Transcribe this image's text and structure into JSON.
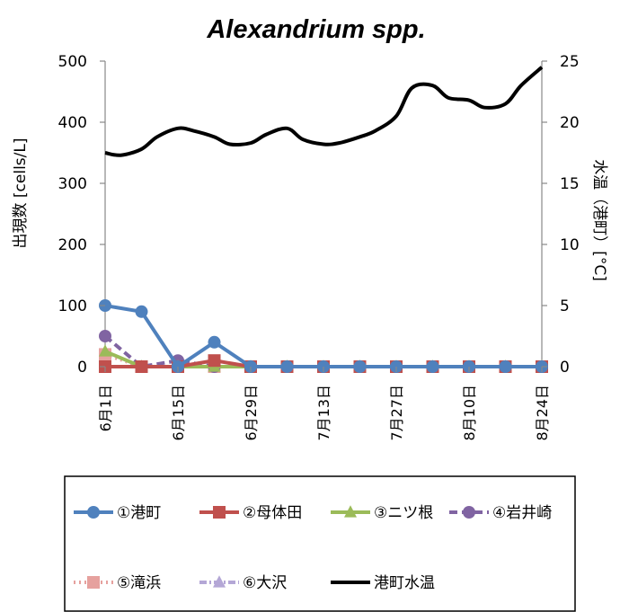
{
  "chart_data": {
    "type": "line",
    "title": "Alexandrium spp.",
    "ylabel": "出現数 [cells/L]",
    "y2label": "水温（港町）[°C]",
    "ylim": [
      0,
      500
    ],
    "y2lim": [
      0,
      25
    ],
    "yticks": [
      "0",
      "100",
      "200",
      "300",
      "400",
      "500"
    ],
    "y2ticks": [
      "0",
      "5",
      "10",
      "15",
      "20",
      "25"
    ],
    "x_date_labels": [
      "6月1日",
      "6月15日",
      "6月29日",
      "7月13日",
      "7月27日",
      "8月10日",
      "8月24日"
    ],
    "x_date_days": [
      0,
      14,
      28,
      42,
      56,
      70,
      84
    ],
    "xlim_days": [
      0,
      84
    ],
    "legend_position": "bottom",
    "series": [
      {
        "name": "①港町",
        "color": "#4f81bd",
        "marker": "circle",
        "dash": "solid",
        "days": [
          0,
          7,
          14,
          21,
          28,
          35,
          42,
          49,
          56,
          63,
          70,
          77,
          84
        ],
        "values": [
          100,
          90,
          0,
          40,
          0,
          0,
          0,
          0,
          0,
          0,
          0,
          0,
          0
        ]
      },
      {
        "name": "②母体田",
        "color": "#c0504d",
        "marker": "square",
        "dash": "solid",
        "days": [
          0,
          7,
          14,
          21,
          28,
          35,
          42,
          49,
          56,
          63,
          70,
          77,
          84
        ],
        "values": [
          0,
          0,
          0,
          10,
          0,
          0,
          0,
          0,
          0,
          0,
          0,
          0,
          0
        ]
      },
      {
        "name": "③ニツ根",
        "color": "#9bbb59",
        "marker": "triangle",
        "dash": "solid",
        "days": [
          0,
          7,
          14,
          21,
          28,
          35,
          42,
          49,
          56,
          63,
          70,
          77,
          84
        ],
        "values": [
          25,
          0,
          0,
          0,
          0,
          0,
          0,
          0,
          0,
          0,
          0,
          0,
          0
        ]
      },
      {
        "name": "④岩井崎",
        "color": "#8064a2",
        "marker": "circle",
        "dash": "dash",
        "days": [
          0,
          7,
          14,
          21,
          28,
          35,
          42,
          49,
          56,
          63,
          70,
          77,
          84
        ],
        "values": [
          50,
          0,
          10,
          0,
          0,
          0,
          0,
          0,
          0,
          0,
          0,
          0,
          0
        ]
      },
      {
        "name": "⑤滝浜",
        "color": "#e6a19e",
        "marker": "square",
        "dash": "dot",
        "days": [
          0,
          7,
          14,
          21,
          28,
          35,
          42,
          49,
          56,
          63,
          70,
          77,
          84
        ],
        "values": [
          20,
          0,
          0,
          0,
          0,
          0,
          0,
          0,
          0,
          0,
          0,
          0,
          0
        ]
      },
      {
        "name": "⑥大沢",
        "color": "#b4a7d6",
        "marker": "triangle",
        "dash": "dashdot",
        "days": [
          0,
          7,
          14,
          21,
          28,
          35,
          42,
          49,
          56,
          63,
          70,
          77,
          84
        ],
        "values": [
          0,
          0,
          0,
          0,
          0,
          0,
          0,
          0,
          0,
          0,
          0,
          0,
          0
        ]
      }
    ],
    "temperature": {
      "name": "港町水温",
      "color": "#000000",
      "axis": "right",
      "days": [
        0,
        3,
        7,
        10,
        14,
        17,
        21,
        24,
        28,
        31,
        35,
        38,
        42,
        45,
        49,
        52,
        56,
        59,
        63,
        66,
        70,
        73,
        77,
        80,
        84
      ],
      "values": [
        17.5,
        17.3,
        17.8,
        18.8,
        19.5,
        19.3,
        18.8,
        18.2,
        18.3,
        19.0,
        19.5,
        18.6,
        18.2,
        18.3,
        18.8,
        19.3,
        20.5,
        22.8,
        23.0,
        22.0,
        21.8,
        21.2,
        21.5,
        23.0,
        24.5
      ]
    }
  }
}
